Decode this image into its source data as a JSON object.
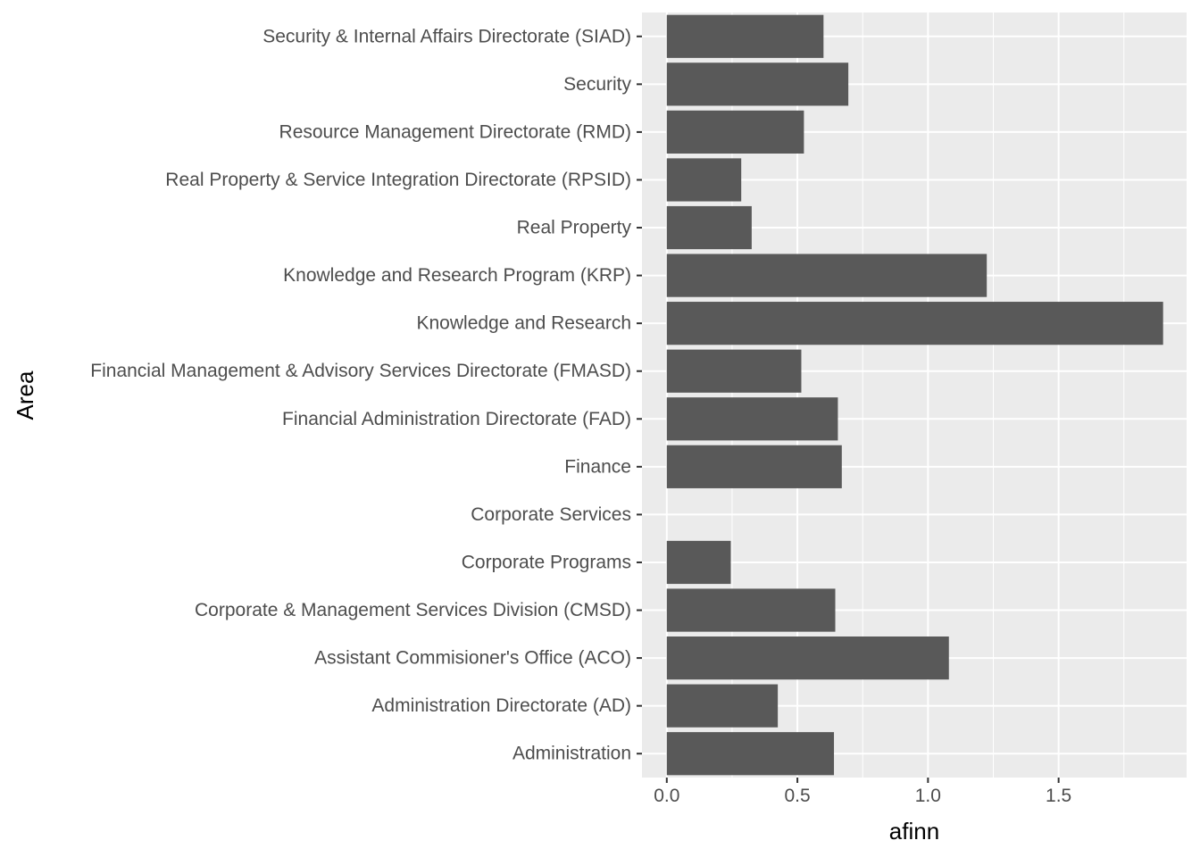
{
  "chart_data": {
    "type": "bar",
    "orientation": "horizontal",
    "xlabel": "afinn",
    "ylabel": "Area",
    "xlim": [
      -0.095,
      1.99
    ],
    "xticks": [
      0.0,
      0.5,
      1.0,
      1.5
    ],
    "xtick_labels": [
      "0.0",
      "0.5",
      "1.0",
      "1.5"
    ],
    "grid": true,
    "legend": "none",
    "bar_color": "#595959",
    "panel_color": "#ebebeb",
    "categories": [
      "Security & Internal Affairs Directorate (SIAD)",
      "Security",
      "Resource Management Directorate (RMD)",
      "Real Property & Service Integration Directorate (RPSID)",
      "Real Property",
      "Knowledge and Research Program (KRP)",
      "Knowledge and Research",
      "Financial Management & Advisory Services Directorate (FMASD)",
      "Financial Administration Directorate (FAD)",
      "Finance",
      "Corporate Services",
      "Corporate Programs",
      "Corporate & Management Services Division (CMSD)",
      "Assistant Commisioner's Office (ACO)",
      "Administration Directorate (AD)",
      "Administration"
    ],
    "values": [
      0.6,
      0.695,
      0.525,
      0.285,
      0.325,
      1.225,
      1.9,
      0.515,
      0.655,
      0.67,
      0,
      0.245,
      0.645,
      1.08,
      0.425,
      0.64
    ]
  }
}
